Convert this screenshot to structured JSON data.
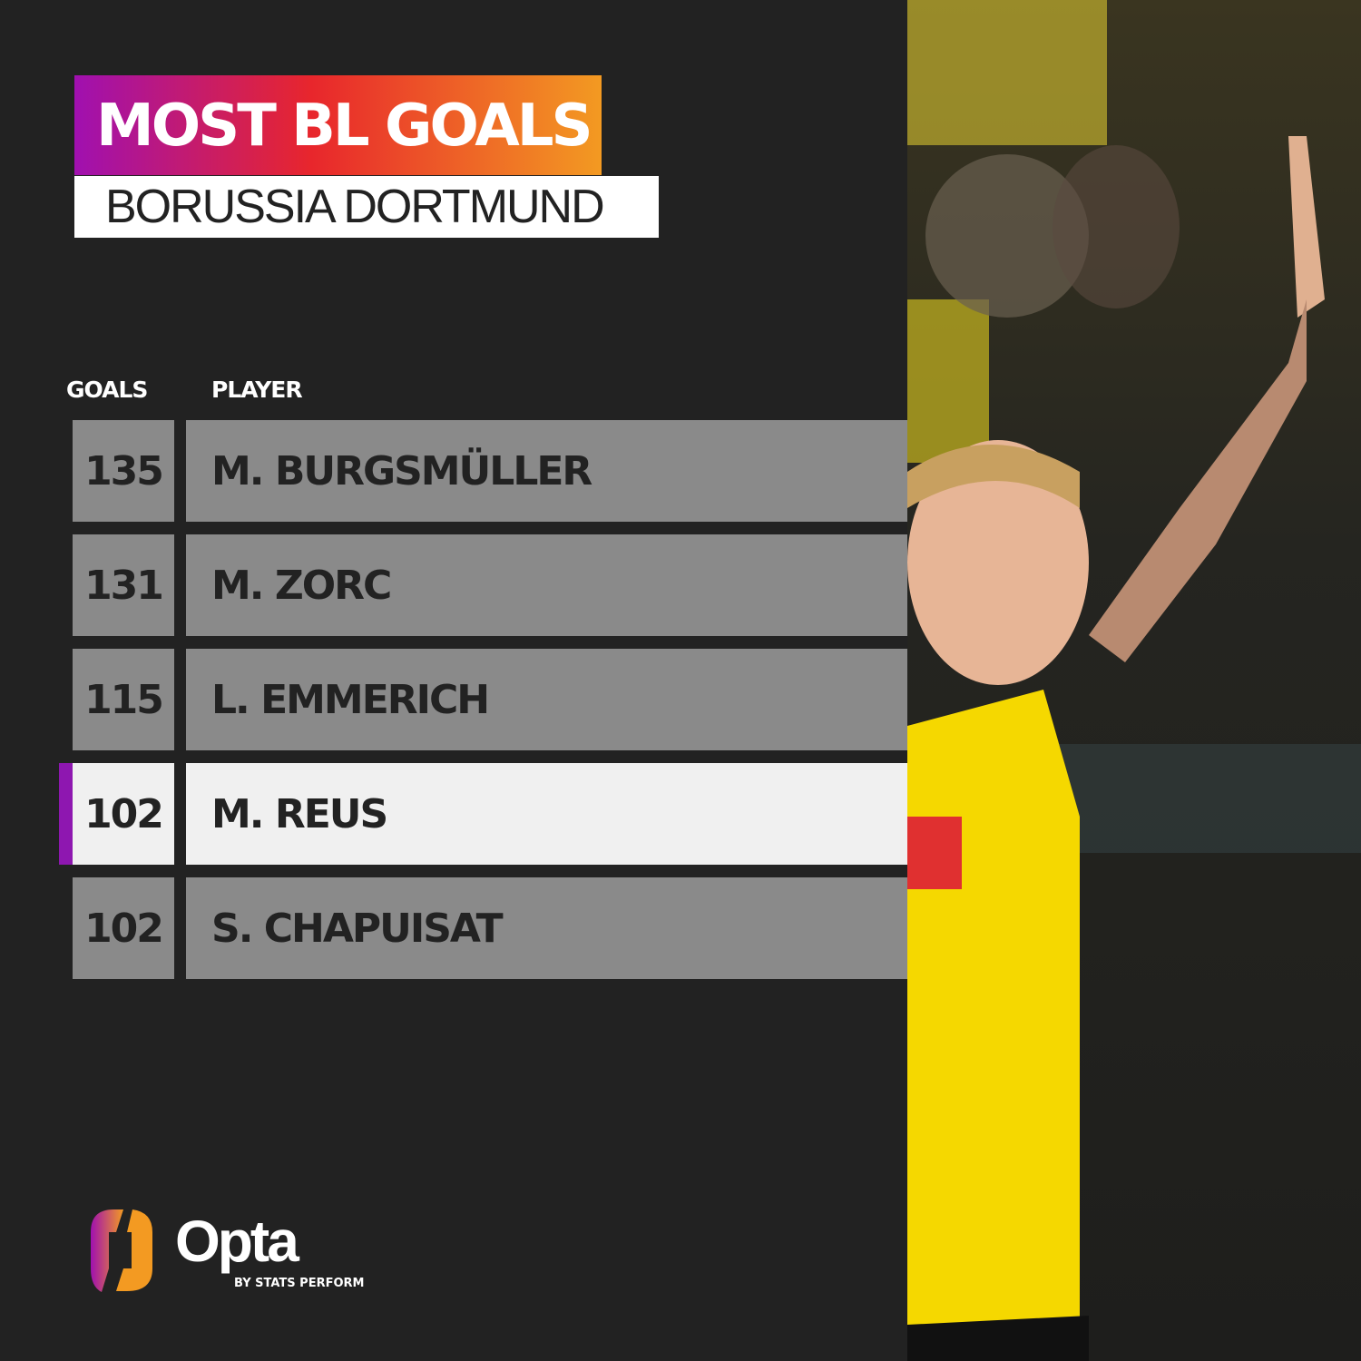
{
  "header": {
    "title": "MOST BL GOALS",
    "subtitle": "BORUSSIA DORTMUND"
  },
  "chart_data": {
    "type": "table",
    "columns": [
      "GOALS",
      "PLAYER"
    ],
    "rows": [
      {
        "goals": "135",
        "player": "M. BURGSMÜLLER",
        "highlighted": false
      },
      {
        "goals": "131",
        "player": "M. ZORC",
        "highlighted": false
      },
      {
        "goals": "115",
        "player": "L. EMMERICH",
        "highlighted": false
      },
      {
        "goals": "102",
        "player": "M. REUS",
        "highlighted": true
      },
      {
        "goals": "102",
        "player": "S. CHAPUISAT",
        "highlighted": false
      }
    ],
    "highlight_color": "#8e17b0"
  },
  "logo": {
    "name": "Opta",
    "tagline": "BY STATS PERFORM"
  },
  "colors": {
    "background": "#222222",
    "row": "#8a8a8a",
    "row_highlight": "#f0f0f0",
    "kit_yellow": "#f5d800"
  }
}
